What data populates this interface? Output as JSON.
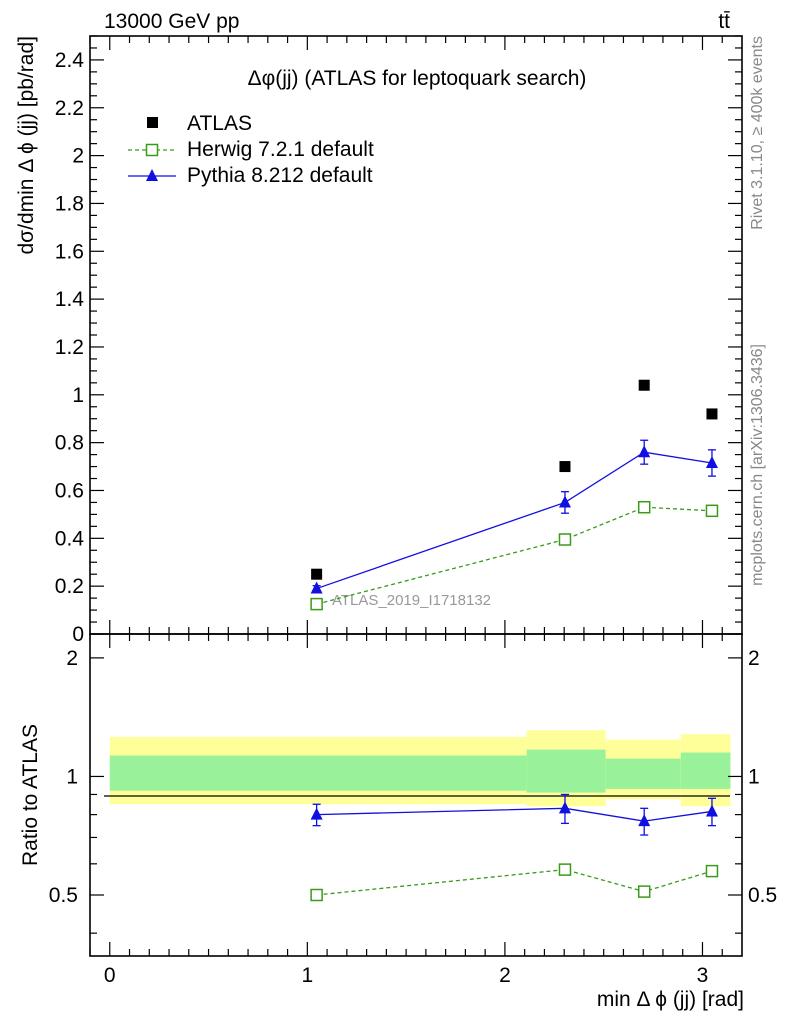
{
  "header": {
    "energy_label": "13000 GeV pp",
    "process_label": "tt̄"
  },
  "side_text": {
    "rivet": "Rivet 3.1.10, ≥ 400k events",
    "mcplots": "mcplots.cern.ch [arXiv:1306.3436]"
  },
  "colors": {
    "atlas": "#000000",
    "herwig": "#3a9a1a",
    "pythia": "#1010e0",
    "band_outer": "#ffff99",
    "band_inner": "#99f299"
  },
  "chart_data": [
    {
      "type": "scatter",
      "panel": "main",
      "title": "Δφ(jj) (ATLAS for leptoquark search)",
      "xlabel": "min Δ ϕ (jj) [rad]",
      "ylabel": "dσ/dmin Δ ϕ (jj) [pb/rad]",
      "xlim": [
        -0.1,
        3.2
      ],
      "ylim": [
        0,
        2.5
      ],
      "ytick_labels": [
        "0",
        "0.2",
        "0.4",
        "0.6",
        "0.8",
        "1",
        "1.2",
        "1.4",
        "1.6",
        "1.8",
        "2",
        "2.2",
        "2.4"
      ],
      "legend_position": "top-left",
      "watermark": "ATLAS_2019_I1718132",
      "series": [
        {
          "name": "ATLAS",
          "style": "square-marker",
          "x": [
            1.047,
            2.304,
            2.705,
            3.048
          ],
          "y": [
            0.25,
            0.7,
            1.04,
            0.92
          ]
        },
        {
          "name": "Herwig 7.2.1 default",
          "style": "dashed-open-square",
          "x": [
            1.047,
            2.304,
            2.705,
            3.048
          ],
          "y": [
            0.125,
            0.395,
            0.53,
            0.515
          ]
        },
        {
          "name": "Pythia 8.212 default",
          "style": "solid-triangle",
          "x": [
            1.047,
            2.304,
            2.705,
            3.048
          ],
          "y": [
            0.19,
            0.55,
            0.76,
            0.715
          ],
          "yerr": [
            0.012,
            0.045,
            0.05,
            0.055
          ]
        }
      ]
    },
    {
      "type": "line",
      "panel": "ratio",
      "ylabel": "Ratio to ATLAS",
      "xlabel": "min Δ ϕ (jj) [rad]",
      "xlim": [
        -0.1,
        3.2
      ],
      "ylim": [
        0.35,
        2.3
      ],
      "xtick_labels": [
        "0",
        "1",
        "2",
        "3"
      ],
      "ytick_labels": [
        "0.5",
        "1",
        "2"
      ],
      "reference_line": 1,
      "uncertainty_bands": [
        {
          "x_low": 0.0,
          "x_high": 2.11,
          "outer": [
            0.85,
            1.26
          ],
          "inner": [
            0.92,
            1.13
          ]
        },
        {
          "x_low": 2.11,
          "x_high": 2.51,
          "outer": [
            0.84,
            1.31
          ],
          "inner": [
            0.91,
            1.17
          ]
        },
        {
          "x_low": 2.51,
          "x_high": 2.89,
          "outer": [
            0.875,
            1.24
          ],
          "inner": [
            0.93,
            1.11
          ]
        },
        {
          "x_low": 2.89,
          "x_high": 3.1416,
          "outer": [
            0.84,
            1.28
          ],
          "inner": [
            0.93,
            1.15
          ]
        }
      ],
      "series": [
        {
          "name": "Herwig 7.2.1 default",
          "x": [
            1.047,
            2.304,
            2.705,
            3.048
          ],
          "y": [
            0.5,
            0.58,
            0.51,
            0.575
          ]
        },
        {
          "name": "Pythia 8.212 default",
          "x": [
            1.047,
            2.304,
            2.705,
            3.048
          ],
          "y": [
            0.8,
            0.83,
            0.77,
            0.815
          ],
          "yerr": [
            0.05,
            0.07,
            0.06,
            0.065
          ]
        }
      ]
    }
  ]
}
